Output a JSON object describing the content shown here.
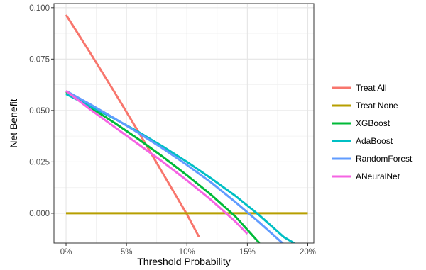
{
  "chart_data": {
    "type": "line",
    "xlabel": "Threshold Probability",
    "ylabel": "Net Benefit",
    "xlim": [
      -0.01,
      0.205
    ],
    "ylim": [
      -0.0145,
      0.102
    ],
    "x_ticks": [
      0,
      0.05,
      0.1,
      0.15,
      0.2
    ],
    "x_tick_labels": [
      "0%",
      "5%",
      "10%",
      "15%",
      "20%"
    ],
    "y_ticks": [
      0.0,
      0.025,
      0.05,
      0.075,
      0.1
    ],
    "y_tick_labels": [
      "0.000",
      "0.025",
      "0.050",
      "0.075",
      "0.100"
    ],
    "grid": true,
    "legend_position": "right",
    "series": [
      {
        "name": "Treat All",
        "color": "#F8766D",
        "x": [
          0,
          0.02,
          0.04,
          0.06,
          0.08,
          0.1,
          0.11
        ],
        "y": [
          0.0965,
          0.078,
          0.059,
          0.0395,
          0.0195,
          -0.0005,
          -0.0115
        ]
      },
      {
        "name": "Treat None",
        "color": "#B79F00",
        "x": [
          0,
          0.2
        ],
        "y": [
          0.0,
          0.0
        ]
      },
      {
        "name": "XGBoost",
        "color": "#00BA38",
        "x": [
          0,
          0.02,
          0.04,
          0.06,
          0.08,
          0.1,
          0.12,
          0.14,
          0.16
        ],
        "y": [
          0.059,
          0.0515,
          0.044,
          0.036,
          0.0275,
          0.0185,
          0.009,
          -0.0015,
          -0.0145
        ]
      },
      {
        "name": "AdaBoost",
        "color": "#00BFC4",
        "x": [
          0,
          0.02,
          0.04,
          0.06,
          0.08,
          0.1,
          0.12,
          0.14,
          0.16,
          0.18,
          0.19
        ],
        "y": [
          0.058,
          0.052,
          0.046,
          0.0395,
          0.0325,
          0.025,
          0.017,
          0.0085,
          -0.001,
          -0.0115,
          -0.015
        ]
      },
      {
        "name": "RandomForest",
        "color": "#619CFF",
        "x": [
          0,
          0.02,
          0.04,
          0.06,
          0.08,
          0.1,
          0.12,
          0.14,
          0.16,
          0.18
        ],
        "y": [
          0.0595,
          0.053,
          0.0462,
          0.039,
          0.0315,
          0.0235,
          0.015,
          0.0055,
          -0.0045,
          -0.015
        ]
      },
      {
        "name": "ANeuralNet",
        "color": "#F564E3",
        "x": [
          0,
          0.02,
          0.04,
          0.06,
          0.08,
          0.1,
          0.12,
          0.14,
          0.15
        ],
        "y": [
          0.0595,
          0.0505,
          0.042,
          0.0335,
          0.025,
          0.016,
          0.0065,
          -0.004,
          -0.01
        ]
      }
    ]
  }
}
